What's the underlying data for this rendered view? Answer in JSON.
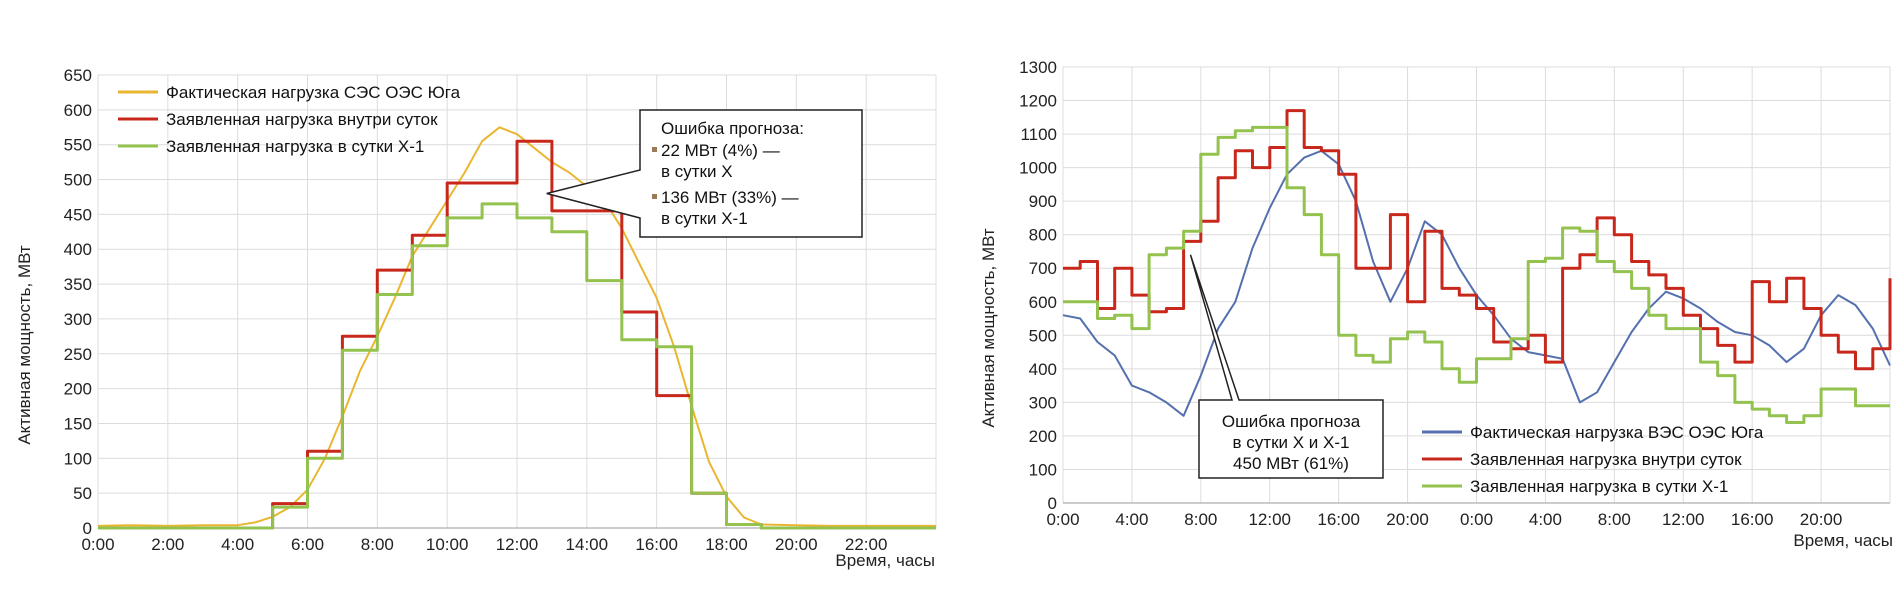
{
  "colors": {
    "solar": "#E9B62F",
    "wind": "#5470AE",
    "intraday": "#C8281C",
    "dayahead": "#93C24F",
    "grid": "#dcdcdc",
    "text": "#222222"
  },
  "chart_data": [
    {
      "type": "line",
      "ylabel": "Активная мощность, МВт",
      "xlabel": "Время, часы",
      "ylim": [
        0,
        650
      ],
      "yticks": [
        "0",
        "50",
        "100",
        "150",
        "200",
        "250",
        "300",
        "350",
        "400",
        "450",
        "500",
        "550",
        "600",
        "650"
      ],
      "xlim": [
        0,
        24
      ],
      "xticks": [
        "0:00",
        "2:00",
        "4:00",
        "6:00",
        "8:00",
        "10:00",
        "12:00",
        "14:00",
        "16:00",
        "18:00",
        "20:00",
        "22:00"
      ],
      "grid": true,
      "legend_position": "top-left",
      "series": [
        {
          "name": "Фактическая нагрузка СЭС ОЭС Юга",
          "x": [
            0,
            1,
            2,
            3,
            4,
            4.5,
            5,
            5.5,
            6,
            6.5,
            7,
            7.5,
            8,
            8.5,
            9,
            9.5,
            10,
            10.5,
            11,
            11.5,
            12,
            12.5,
            13,
            13.5,
            14,
            14.5,
            15,
            15.5,
            16,
            16.5,
            17,
            17.5,
            18,
            18.5,
            19,
            20,
            21,
            22,
            23,
            24
          ],
          "y": [
            3,
            4,
            3,
            4,
            4,
            8,
            16,
            30,
            55,
            100,
            160,
            225,
            275,
            330,
            390,
            430,
            470,
            510,
            555,
            575,
            565,
            545,
            525,
            510,
            490,
            470,
            430,
            380,
            330,
            260,
            175,
            95,
            45,
            15,
            5,
            4,
            3,
            3,
            3,
            3
          ]
        },
        {
          "name": "Заявленная нагрузка внутри суток",
          "x": [
            0,
            5,
            6,
            7,
            8,
            9,
            10,
            11,
            12,
            13,
            14,
            15,
            16,
            17,
            18,
            19,
            24
          ],
          "y": [
            0,
            35,
            110,
            275,
            370,
            420,
            495,
            495,
            555,
            455,
            455,
            310,
            190,
            50,
            5,
            0,
            0
          ]
        },
        {
          "name": "Заявленная нагрузка в сутки Х-1",
          "x": [
            0,
            5,
            6,
            7,
            8,
            9,
            10,
            11,
            12,
            13,
            14,
            15,
            16,
            17,
            18,
            19,
            24
          ],
          "y": [
            0,
            30,
            100,
            255,
            335,
            405,
            445,
            465,
            445,
            425,
            355,
            270,
            260,
            50,
            5,
            0,
            0
          ]
        }
      ],
      "annotation": {
        "title": "Ошибка прогноза:",
        "line1": "22 МВт (4%) —",
        "line2": "в сутки Х",
        "line3": "136 МВт (33%) —",
        "line4": "в сутки Х-1",
        "target_x": 12.85,
        "target_y": 480
      }
    },
    {
      "type": "line",
      "ylabel": "Активная мощность, МВт",
      "xlabel": "Время, часы",
      "ylim": [
        0,
        1300
      ],
      "yticks": [
        "0",
        "100",
        "200",
        "300",
        "400",
        "500",
        "600",
        "700",
        "800",
        "900",
        "1000",
        "1100",
        "1200",
        "1300"
      ],
      "xlim": [
        0,
        48
      ],
      "xticks": [
        "0:00",
        "4:00",
        "8:00",
        "12:00",
        "16:00",
        "20:00",
        "0:00",
        "4:00",
        "8:00",
        "12:00",
        "16:00",
        "20:00"
      ],
      "grid": true,
      "legend_position": "bottom-right",
      "series": [
        {
          "name": "Фактическая нагрузка ВЭС ОЭС Юга",
          "x": [
            0,
            1,
            2,
            3,
            4,
            5,
            6,
            7,
            8,
            9,
            10,
            11,
            12,
            13,
            14,
            15,
            16,
            17,
            18,
            19,
            20,
            21,
            22,
            23,
            24,
            25,
            26,
            27,
            28,
            29,
            30,
            31,
            32,
            33,
            34,
            35,
            36,
            37,
            38,
            39,
            40,
            41,
            42,
            43,
            44,
            45,
            46,
            47,
            48
          ],
          "y": [
            560,
            550,
            480,
            440,
            350,
            330,
            300,
            260,
            380,
            520,
            600,
            760,
            880,
            980,
            1030,
            1050,
            1010,
            900,
            720,
            600,
            700,
            840,
            800,
            700,
            620,
            560,
            490,
            450,
            440,
            430,
            300,
            330,
            420,
            510,
            580,
            630,
            610,
            580,
            540,
            510,
            500,
            470,
            420,
            460,
            560,
            620,
            590,
            520,
            410
          ]
        },
        {
          "name": "Заявленная нагрузка внутри суток",
          "x": [
            0,
            1,
            2,
            3,
            4,
            5,
            6,
            7,
            8,
            9,
            10,
            11,
            12,
            13,
            14,
            15,
            16,
            17,
            18,
            19,
            20,
            21,
            22,
            23,
            24,
            25,
            26,
            27,
            28,
            29,
            30,
            31,
            32,
            33,
            34,
            35,
            36,
            37,
            38,
            39,
            40,
            41,
            42,
            43,
            44,
            45,
            46,
            47,
            48
          ],
          "y": [
            700,
            720,
            580,
            700,
            620,
            570,
            580,
            780,
            840,
            970,
            1050,
            1000,
            1060,
            1170,
            1060,
            1050,
            980,
            700,
            700,
            860,
            600,
            810,
            640,
            620,
            580,
            480,
            460,
            500,
            420,
            700,
            740,
            850,
            800,
            720,
            680,
            640,
            560,
            520,
            470,
            420,
            660,
            600,
            670,
            580,
            500,
            450,
            400,
            460,
            670
          ]
        },
        {
          "name": "Заявленная нагрузка в сутки Х-1",
          "x": [
            0,
            1,
            2,
            3,
            4,
            5,
            6,
            7,
            8,
            9,
            10,
            11,
            12,
            13,
            14,
            15,
            16,
            17,
            18,
            19,
            20,
            21,
            22,
            23,
            24,
            25,
            26,
            27,
            28,
            29,
            30,
            31,
            32,
            33,
            34,
            35,
            36,
            37,
            38,
            39,
            40,
            41,
            42,
            43,
            44,
            45,
            46,
            47,
            48
          ],
          "y": [
            600,
            600,
            550,
            560,
            520,
            740,
            760,
            810,
            1040,
            1090,
            1110,
            1120,
            1120,
            940,
            860,
            740,
            500,
            440,
            420,
            490,
            510,
            480,
            400,
            360,
            430,
            430,
            490,
            720,
            730,
            820,
            810,
            720,
            690,
            640,
            560,
            520,
            520,
            420,
            380,
            300,
            280,
            260,
            240,
            260,
            340,
            340,
            290,
            290,
            290
          ]
        }
      ],
      "annotation": {
        "line1": "Ошибка прогноза",
        "line2": "в сутки Х и Х-1",
        "line3": "450 МВт (61%)",
        "target_x": 7.4,
        "target_y": 740
      }
    }
  ]
}
